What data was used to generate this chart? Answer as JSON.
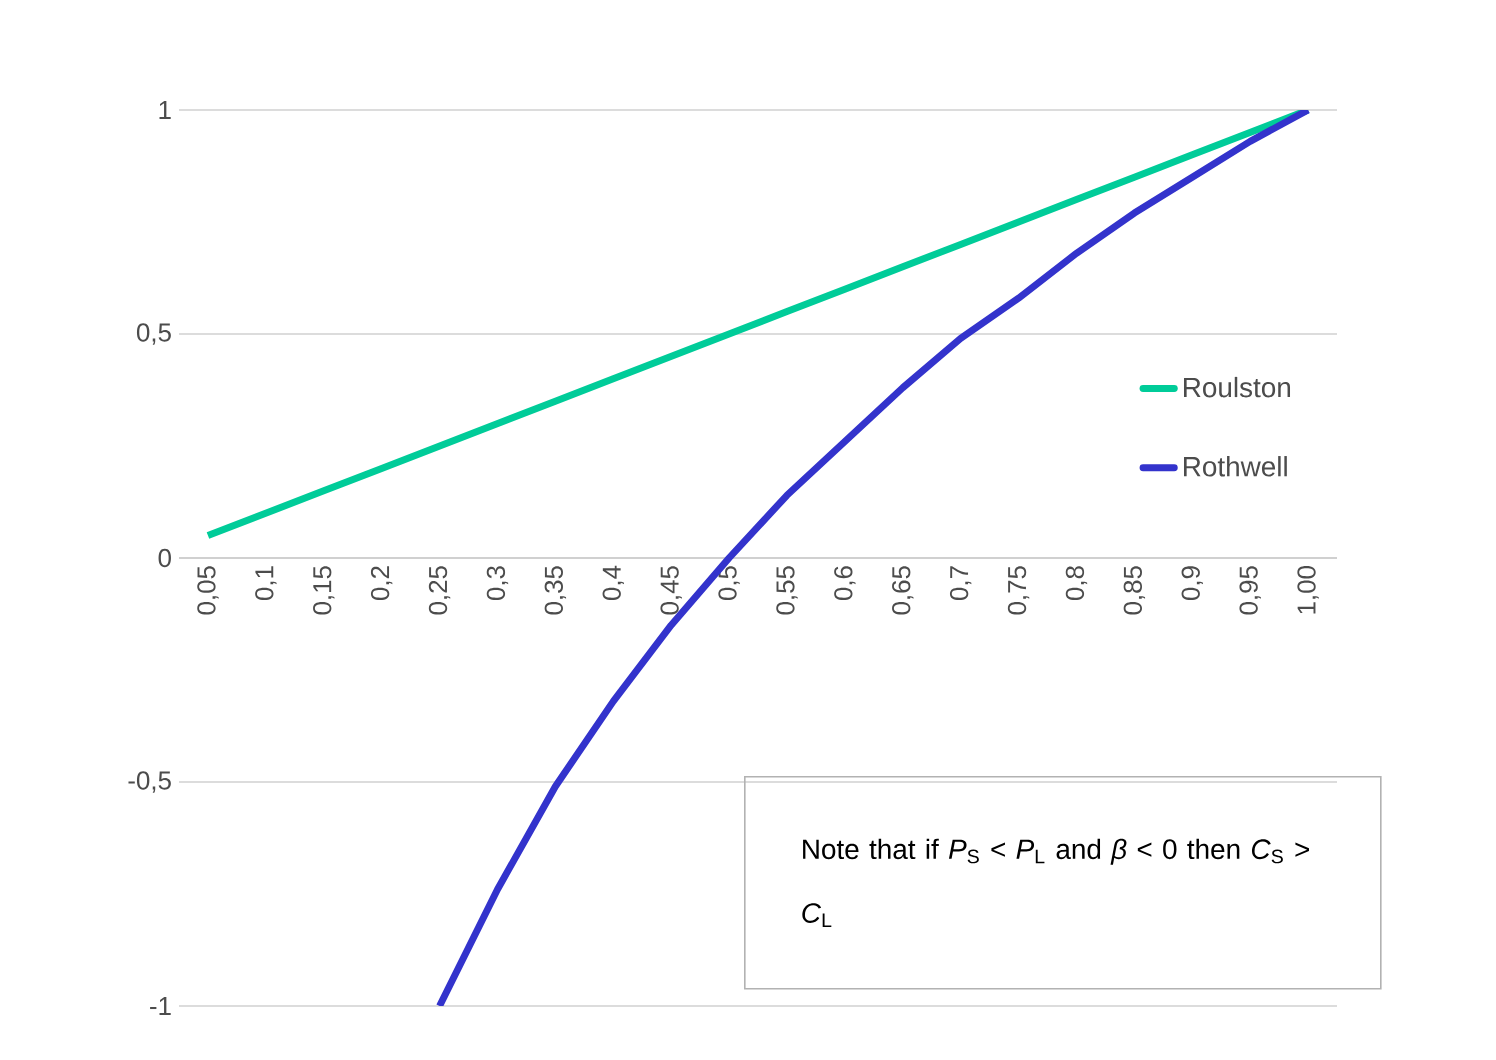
{
  "chart_data": {
    "type": "line",
    "categories": [
      "0,05",
      "0,1",
      "0,15",
      "0,2",
      "0,25",
      "0,3",
      "0,35",
      "0,4",
      "0,45",
      "0,5",
      "0,55",
      "0,6",
      "0,65",
      "0,7",
      "0,75",
      "0,8",
      "0,85",
      "0,9",
      "0,95",
      "1,00"
    ],
    "series": [
      {
        "name": "Roulston",
        "color": "#00cc99",
        "values": [
          0.05,
          0.1,
          0.15,
          0.2,
          0.25,
          0.3,
          0.35,
          0.4,
          0.45,
          0.5,
          0.55,
          0.6,
          0.65,
          0.7,
          0.75,
          0.8,
          0.85,
          0.9,
          0.95,
          1
        ]
      },
      {
        "name": "Rothwell",
        "color": "#3333cc",
        "values": [
          null,
          null,
          null,
          null,
          -1,
          -0.74,
          -0.51,
          -0.32,
          -0.15,
          0,
          0.14,
          0.26,
          0.38,
          0.49,
          0.58,
          0.68,
          0.77,
          0.85,
          0.93,
          1
        ]
      }
    ],
    "ylim": [
      -1,
      1
    ],
    "yticks": [
      -1,
      {
        "value": -0.5,
        "label": "-0,5"
      },
      0,
      {
        "value": 0.5,
        "label": "0,5"
      },
      1
    ],
    "grid": "y",
    "legend": "right",
    "marker": "none",
    "line_style": "solid",
    "annotations": [
      "Note that if *P*$_{S}$ < *P*$_{L}$ and  *β* < 0 then *C*$_{S}$ > *C*$_{L}$"
    ]
  }
}
